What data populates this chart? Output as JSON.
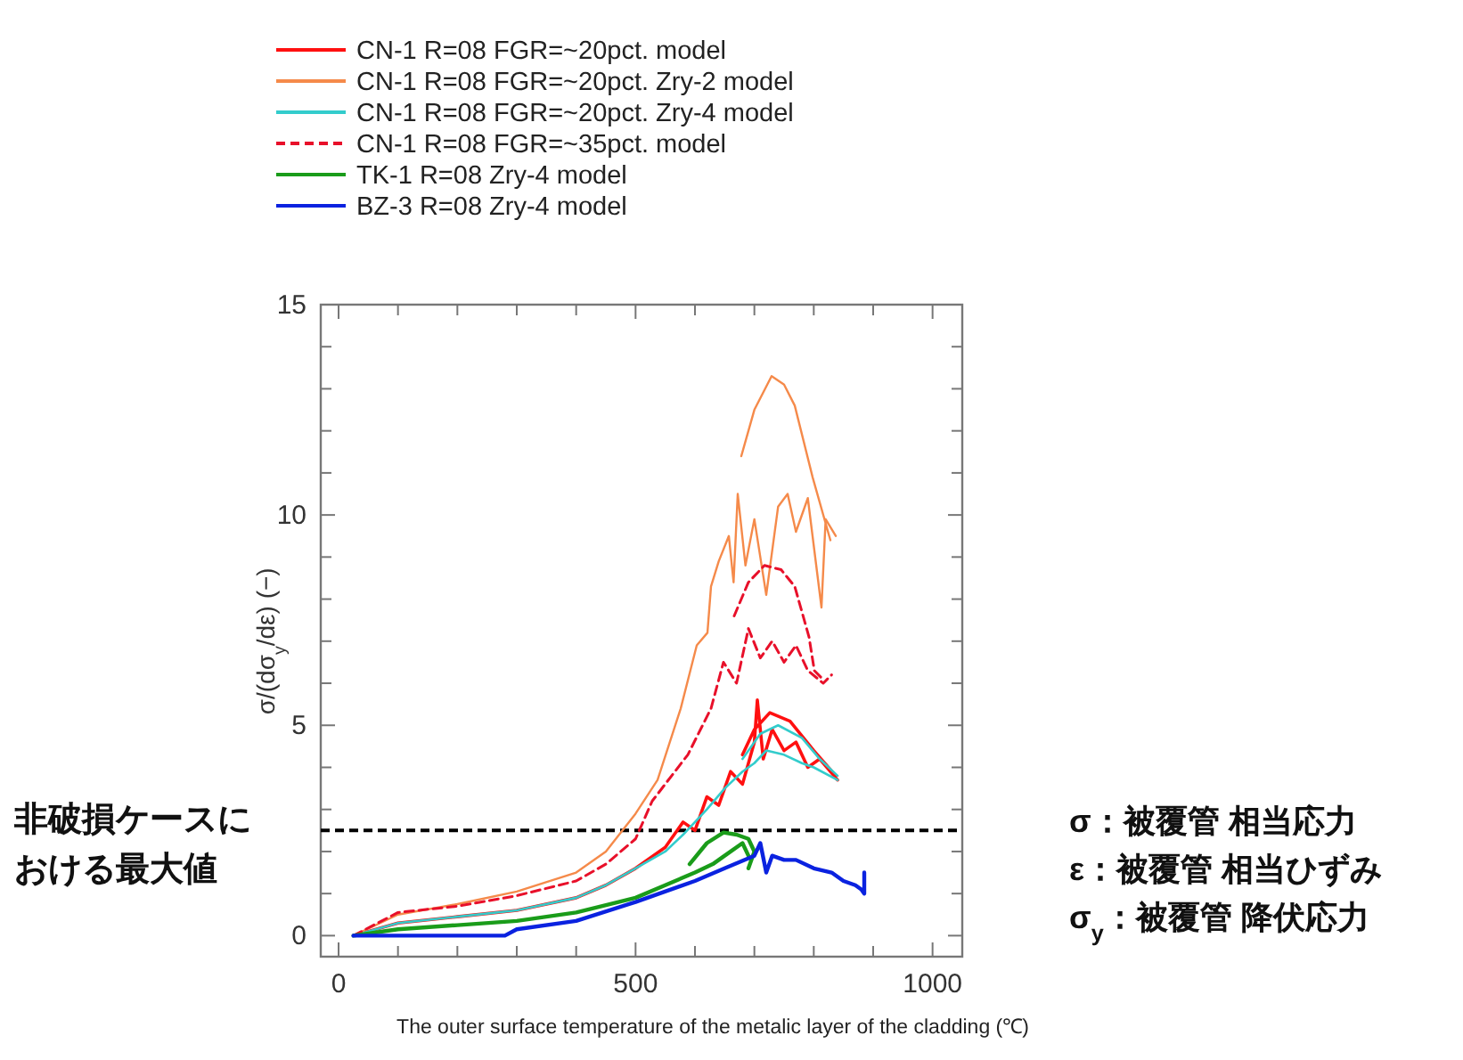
{
  "chart_data": {
    "type": "line",
    "xlabel": "The outer surface temperature of the metalic layer of the cladding (℃)",
    "ylabel": "σ/(dσ$_{y}$/dε) (−)",
    "xlim": [
      -30,
      1050
    ],
    "ylim": [
      -0.5,
      15
    ],
    "xticks": [
      {
        "value": 0,
        "label": "0"
      },
      {
        "value": 100,
        "label": null
      },
      {
        "value": 200,
        "label": null
      },
      {
        "value": 300,
        "label": null
      },
      {
        "value": 400,
        "label": null
      },
      {
        "value": 500,
        "label": "500"
      },
      {
        "value": 600,
        "label": null
      },
      {
        "value": 700,
        "label": null
      },
      {
        "value": 800,
        "label": null
      },
      {
        "value": 900,
        "label": null
      },
      {
        "value": 1000,
        "label": "1000"
      }
    ],
    "yticks": [
      {
        "value": 0,
        "label": "0"
      },
      {
        "value": 1,
        "label": null
      },
      {
        "value": 2,
        "label": null
      },
      {
        "value": 3,
        "label": null
      },
      {
        "value": 4,
        "label": null
      },
      {
        "value": 5,
        "label": "5"
      },
      {
        "value": 6,
        "label": null
      },
      {
        "value": 7,
        "label": null
      },
      {
        "value": 8,
        "label": null
      },
      {
        "value": 9,
        "label": null
      },
      {
        "value": 10,
        "label": "10"
      },
      {
        "value": 11,
        "label": null
      },
      {
        "value": 12,
        "label": null
      },
      {
        "value": 13,
        "label": null
      },
      {
        "value": 14,
        "label": null
      },
      {
        "value": 15,
        "label": "15"
      }
    ],
    "grid": false,
    "legend": "top left",
    "marker": "none",
    "series": [
      {
        "name": "CN-1 R=08 FGR=~20pct. model",
        "color": "#ff1010",
        "x": [
          25,
          100,
          200,
          300,
          400,
          450,
          500,
          550,
          580,
          600,
          620,
          640,
          660,
          680,
          700,
          705,
          715,
          730,
          750,
          770,
          790,
          810,
          840,
          null,
          680,
          700,
          726,
          760,
          800,
          837
        ],
        "values": [
          0,
          0.3,
          0.45,
          0.6,
          0.9,
          1.2,
          1.6,
          2.1,
          2.7,
          2.5,
          3.3,
          3.1,
          3.9,
          3.6,
          4.6,
          5.6,
          4.2,
          4.9,
          4.4,
          4.6,
          4.0,
          4.2,
          3.7,
          null,
          4.3,
          4.9,
          5.3,
          5.1,
          4.4,
          3.8
        ]
      },
      {
        "name": "CN-1 R=08 FGR=~20pct. Zry-2 model",
        "color": "#f58a4a",
        "x": [
          25,
          100,
          200,
          300,
          400,
          450,
          500,
          537,
          576,
          603,
          621,
          627,
          640,
          657,
          665,
          672,
          685,
          700,
          720,
          740,
          756,
          770,
          790,
          813,
          820,
          837,
          null,
          678,
          700,
          729,
          750,
          768,
          798,
          828
        ],
        "values": [
          0,
          0.5,
          0.75,
          1.05,
          1.5,
          2.0,
          2.9,
          3.7,
          5.4,
          6.9,
          7.2,
          8.3,
          8.9,
          9.5,
          8.4,
          10.5,
          8.8,
          9.9,
          8.1,
          10.2,
          10.5,
          9.6,
          10.4,
          7.8,
          9.9,
          9.5,
          null,
          11.4,
          12.5,
          13.3,
          13.1,
          12.6,
          10.9,
          9.4
        ]
      },
      {
        "name": "CN-1 R=08 FGR=~20pct. Zry-4 model",
        "color": "#33cccc",
        "x": [
          25,
          100,
          200,
          300,
          400,
          450,
          500,
          550,
          580,
          620,
          650,
          680,
          700,
          720,
          750,
          780,
          800,
          840,
          null,
          680,
          710,
          740,
          780,
          810,
          840
        ],
        "values": [
          0,
          0.3,
          0.45,
          0.6,
          0.9,
          1.2,
          1.6,
          2.0,
          2.4,
          3.0,
          3.5,
          3.9,
          4.1,
          4.4,
          4.3,
          4.1,
          4.0,
          3.7,
          null,
          4.2,
          4.8,
          5.0,
          4.7,
          4.2,
          3.8
        ]
      },
      {
        "name": "CN-1 R=08 FGR=~35pct. model",
        "color": "#e8102a",
        "line_style": "dashed",
        "x": [
          25,
          100,
          200,
          300,
          400,
          450,
          500,
          528,
          588,
          627,
          648,
          670,
          690,
          710,
          730,
          750,
          770,
          790,
          816,
          830,
          null,
          666,
          690,
          717,
          745,
          768,
          792,
          801,
          815
        ],
        "values": [
          0,
          0.55,
          0.7,
          0.95,
          1.3,
          1.7,
          2.3,
          3.2,
          4.3,
          5.4,
          6.5,
          6.0,
          7.3,
          6.6,
          7.0,
          6.5,
          6.9,
          6.3,
          6.0,
          6.2,
          null,
          7.6,
          8.4,
          8.8,
          8.7,
          8.3,
          7.1,
          6.3,
          6.1
        ]
      },
      {
        "name": "TK-1 R=08 Zry-4 model",
        "color": "#1a9c1a",
        "x": [
          25,
          100,
          200,
          300,
          400,
          500,
          550,
          600,
          630,
          650,
          680,
          690,
          null,
          591,
          620,
          648,
          670,
          690,
          700,
          690
        ],
        "values": [
          0,
          0.15,
          0.25,
          0.35,
          0.55,
          0.9,
          1.2,
          1.5,
          1.7,
          1.9,
          2.2,
          1.9,
          null,
          1.7,
          2.2,
          2.45,
          2.4,
          2.3,
          2.0,
          1.6
        ]
      },
      {
        "name": "BZ-3 R=08 Zry-4 model",
        "color": "#0a22e0",
        "x": [
          25,
          280,
          300,
          400,
          500,
          600,
          650,
          700,
          710,
          720,
          730,
          750,
          770,
          800,
          830,
          850,
          870,
          880,
          885,
          885
        ],
        "values": [
          0,
          0,
          0.15,
          0.35,
          0.8,
          1.3,
          1.6,
          1.9,
          2.2,
          1.5,
          1.9,
          1.8,
          1.8,
          1.6,
          1.5,
          1.3,
          1.2,
          1.1,
          1.0,
          1.5
        ]
      }
    ],
    "ref_lines": [
      {
        "axis": "y",
        "value": 2.5,
        "label": "非破損ケースにおける最大値",
        "color": "#000000",
        "line_style": "dashed"
      }
    ],
    "annotations": [
      "σ：被覆管 相当応力",
      "ε：被覆管 相当ひずみ",
      "σ$_{y}$：被覆管 降伏応力"
    ]
  }
}
